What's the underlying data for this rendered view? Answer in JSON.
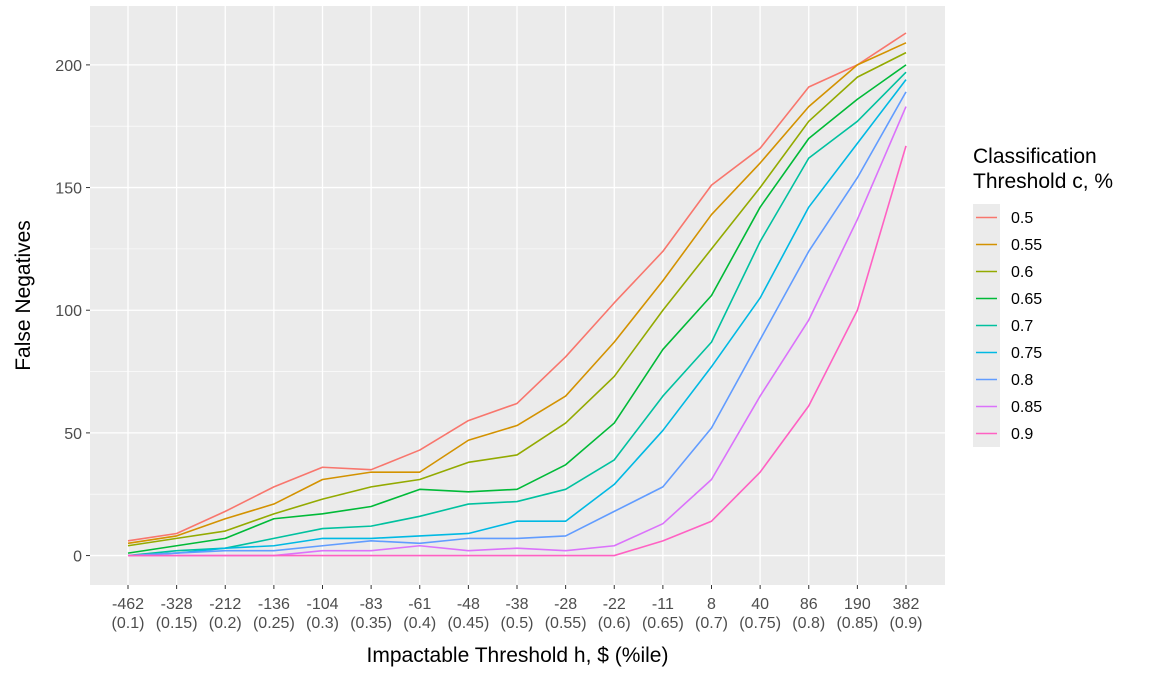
{
  "chart_data": {
    "type": "line",
    "title": "",
    "xlabel": "Impactable Threshold h, $ (%ile)",
    "ylabel": "False Negatives",
    "categories": [
      "-462",
      "-328",
      "-212",
      "-136",
      "-104",
      "-83",
      "-61",
      "-48",
      "-38",
      "-28",
      "-22",
      "-11",
      "8",
      "40",
      "86",
      "190",
      "382"
    ],
    "category_sublabels": [
      "(0.1)",
      "(0.15)",
      "(0.2)",
      "(0.25)",
      "(0.3)",
      "(0.35)",
      "(0.4)",
      "(0.45)",
      "(0.5)",
      "(0.55)",
      "(0.6)",
      "(0.65)",
      "(0.7)",
      "(0.75)",
      "(0.8)",
      "(0.85)",
      "(0.9)"
    ],
    "ylim": [
      -12,
      224
    ],
    "yticks": [
      0,
      50,
      100,
      150,
      200
    ],
    "grid": true,
    "legend": {
      "title_lines": [
        "Classification",
        "Threshold c, %"
      ],
      "placement": "right"
    },
    "series": [
      {
        "name": "0.5",
        "color": "#F8766D",
        "values": [
          6,
          9,
          18,
          28,
          36,
          35,
          43,
          55,
          62,
          81,
          103,
          124,
          151,
          166,
          191,
          200,
          213
        ]
      },
      {
        "name": "0.55",
        "color": "#D39200",
        "values": [
          5,
          8,
          15,
          21,
          31,
          34,
          34,
          47,
          53,
          65,
          87,
          112,
          139,
          160,
          183,
          200,
          209
        ]
      },
      {
        "name": "0.6",
        "color": "#93AA00",
        "values": [
          4,
          7,
          10,
          17,
          23,
          28,
          31,
          38,
          41,
          54,
          73,
          100,
          125,
          150,
          177,
          195,
          205
        ]
      },
      {
        "name": "0.65",
        "color": "#00BA38",
        "values": [
          1,
          4,
          7,
          15,
          17,
          20,
          27,
          26,
          27,
          37,
          54,
          84,
          106,
          142,
          170,
          186,
          200
        ]
      },
      {
        "name": "0.7",
        "color": "#00C19F",
        "values": [
          0,
          2,
          3,
          7,
          11,
          12,
          16,
          21,
          22,
          27,
          39,
          65,
          87,
          128,
          162,
          177,
          197
        ]
      },
      {
        "name": "0.75",
        "color": "#00B9E3",
        "values": [
          0,
          1,
          3,
          4,
          7,
          7,
          8,
          9,
          14,
          14,
          29,
          51,
          77,
          105,
          142,
          168,
          194
        ]
      },
      {
        "name": "0.8",
        "color": "#619CFF",
        "values": [
          0,
          1,
          2,
          2,
          4,
          6,
          5,
          7,
          7,
          8,
          18,
          28,
          52,
          88,
          124,
          154,
          189
        ]
      },
      {
        "name": "0.85",
        "color": "#DB72FB",
        "values": [
          0,
          0,
          0,
          0,
          2,
          2,
          4,
          2,
          3,
          2,
          4,
          13,
          31,
          65,
          96,
          137,
          183
        ]
      },
      {
        "name": "0.9",
        "color": "#FF61C3",
        "values": [
          0,
          0,
          0,
          0,
          0,
          0,
          0,
          0,
          0,
          0,
          0,
          6,
          14,
          34,
          61,
          100,
          167
        ]
      }
    ]
  }
}
